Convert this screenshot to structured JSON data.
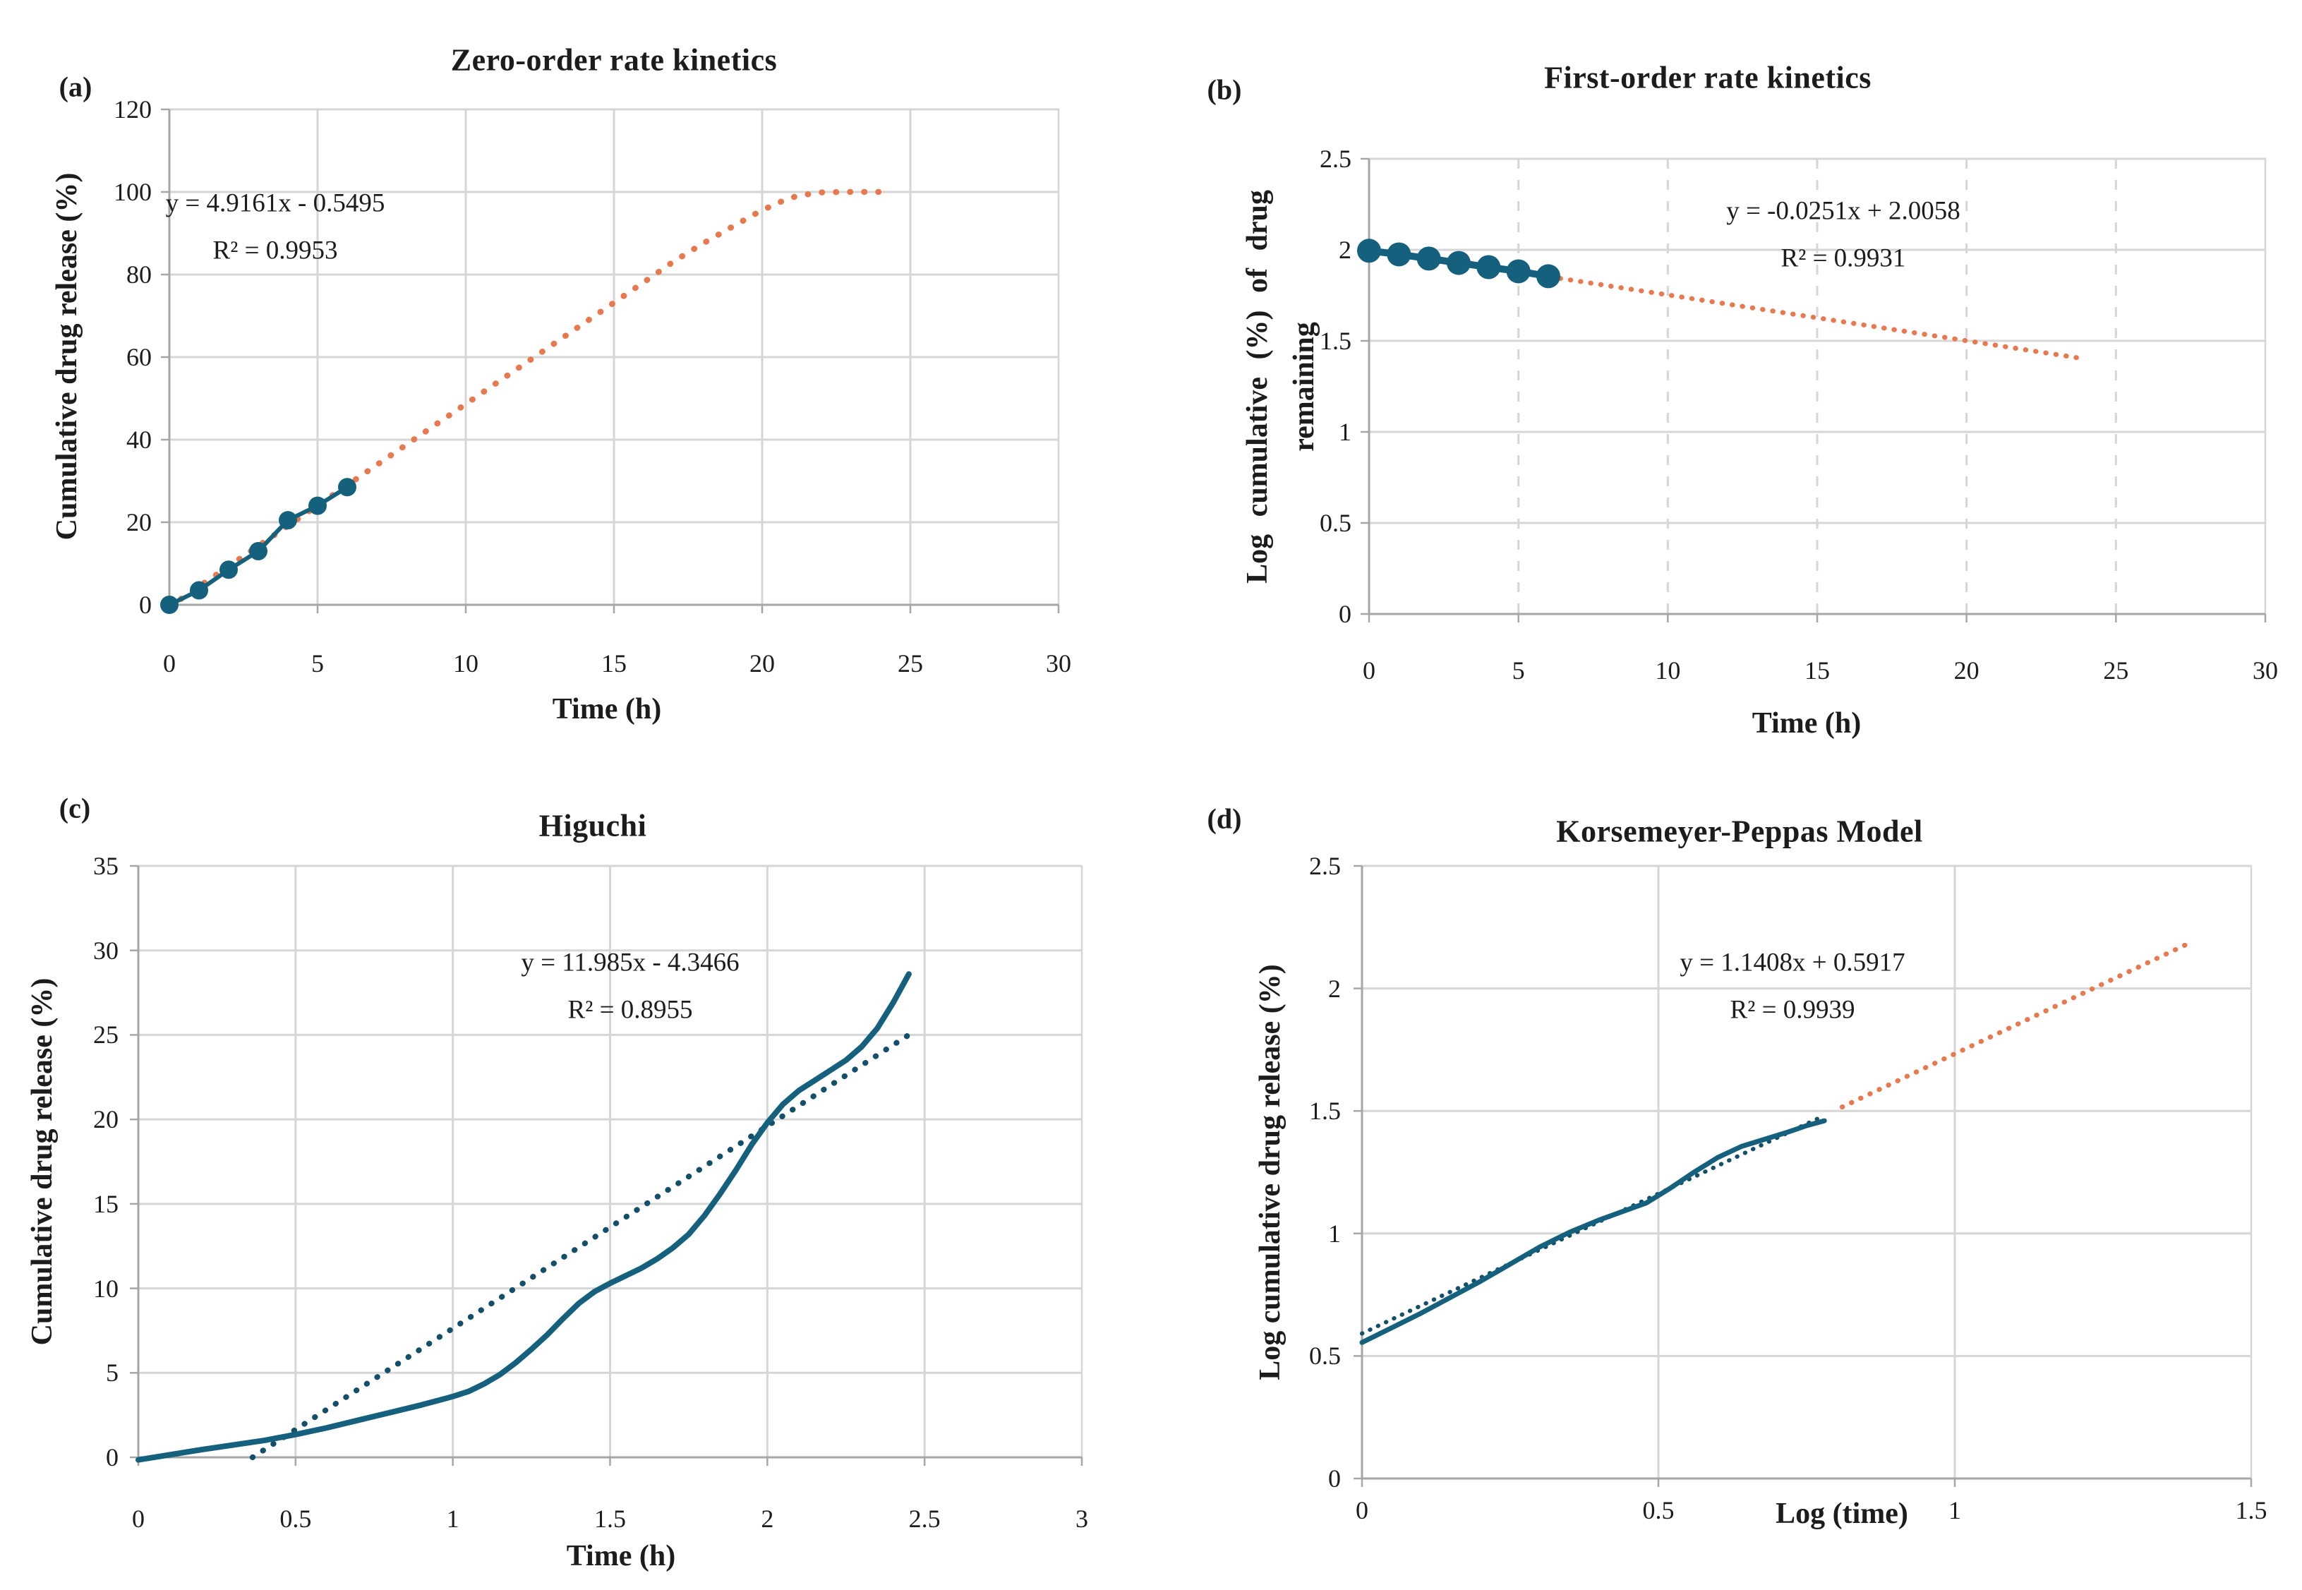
{
  "style": {
    "background": "#FFFFFF",
    "teal": "#14607D",
    "orange": "#E8794F",
    "dark_trend": "#134F68",
    "grid_color": "#D6D6D6",
    "border_color": "#D6D6D6",
    "axis_color": "#A6A6A6",
    "text_color": "#1C1C1C"
  },
  "chart_data": [
    {
      "id": "a",
      "panel_label": "(a)",
      "type": "line",
      "title": "Zero-order rate kinetics",
      "xlabel": "Time (h)",
      "ylabel": "Cumulative drug release (%)",
      "equation": "y = 4.9161x - 0.5495",
      "r_squared": "R² = 0.9953",
      "xlim": [
        0,
        30
      ],
      "ylim": [
        0,
        120
      ],
      "xticks": [
        0,
        5,
        10,
        15,
        20,
        25,
        30
      ],
      "yticks": [
        0,
        20,
        40,
        60,
        80,
        100,
        120
      ],
      "grid": {
        "vertical": "solid",
        "horizontal": "solid"
      },
      "legend": "none",
      "series": [
        {
          "name": "predicted-release-trend",
          "style": "dotted",
          "color": "#E8794F",
          "width": 8.5,
          "gap": 19.5,
          "points": [
            [
              0,
              -0.5
            ],
            [
              16,
              78.1
            ],
            [
              17,
              83.1
            ],
            [
              18,
              87.5
            ],
            [
              19,
              91.6
            ],
            [
              19.8,
              94.8
            ],
            [
              20.5,
              97.3
            ],
            [
              21.2,
              99.1
            ],
            [
              22,
              99.9
            ],
            [
              22.8,
              100
            ],
            [
              24,
              100
            ]
          ]
        },
        {
          "name": "observed-cumulative-release",
          "style": "solid",
          "marker": "circle",
          "marker_size": 13,
          "color": "#14607D",
          "width": 6,
          "points": [
            [
              0,
              0
            ],
            [
              1,
              3.5
            ],
            [
              2,
              8.5
            ],
            [
              3,
              13
            ],
            [
              4,
              20.5
            ],
            [
              5,
              24
            ],
            [
              6,
              28.5
            ]
          ]
        }
      ]
    },
    {
      "id": "b",
      "panel_label": "(b)",
      "type": "line",
      "title": "First-order rate kinetics",
      "xlabel": "Time (h)",
      "ylabel": "Log cumulative (%) of drug remaining",
      "ylabel_lines": [
        "Log cumulative (%) of drug",
        "remaining"
      ],
      "equation": "y = -0.0251x + 2.0058",
      "r_squared": "R² = 0.9931",
      "xlim": [
        0,
        30
      ],
      "ylim": [
        0,
        2.5
      ],
      "xticks": [
        0,
        5,
        10,
        15,
        20,
        25,
        30
      ],
      "yticks": [
        0,
        0.5,
        1,
        1.5,
        2,
        2.5
      ],
      "grid": {
        "vertical": "dashed",
        "horizontal": "solid"
      },
      "legend": "none",
      "series": [
        {
          "name": "first-order-trend-projection",
          "style": "dotted",
          "color": "#E8794F",
          "width": 7,
          "gap": 14,
          "points": [
            [
              6.4,
              1.843
            ],
            [
              24,
              1.4
            ]
          ]
        },
        {
          "name": "observed-log-remaining",
          "style": "solid",
          "marker": "circle",
          "marker_size": 17,
          "color": "#14607D",
          "width": 10,
          "points": [
            [
              0,
              1.995
            ],
            [
              1,
              1.975
            ],
            [
              2,
              1.952
            ],
            [
              3,
              1.928
            ],
            [
              4,
              1.905
            ],
            [
              5,
              1.882
            ],
            [
              6,
              1.855
            ]
          ]
        }
      ]
    },
    {
      "id": "c",
      "panel_label": "(c)",
      "type": "line",
      "title": "Higuchi",
      "xlabel": "Time (h)",
      "ylabel": "Cumulative drug release (%)",
      "equation": "y = 11.985x - 4.3466",
      "r_squared": "R² = 0.8955",
      "xlim": [
        0,
        3
      ],
      "ylim": [
        0,
        35
      ],
      "xticks": [
        0,
        0.5,
        1,
        1.5,
        2,
        2.5,
        3
      ],
      "yticks": [
        0,
        5,
        10,
        15,
        20,
        25,
        30,
        35
      ],
      "grid": {
        "vertical": "solid",
        "horizontal": "solid"
      },
      "legend": "none",
      "series": [
        {
          "name": "higuchi-linear-trend",
          "style": "dotted",
          "color": "#134F68",
          "width": 8,
          "gap": 17,
          "points": [
            [
              0.363,
              0
            ],
            [
              2.45,
              25.0
            ]
          ]
        },
        {
          "name": "observed-release-curve",
          "style": "solid",
          "color": "#14607D",
          "width": 8,
          "points": [
            [
              0,
              -0.15
            ],
            [
              0.2,
              0.45
            ],
            [
              0.4,
              1.0
            ],
            [
              0.5,
              1.35
            ],
            [
              0.6,
              1.75
            ],
            [
              0.7,
              2.2
            ],
            [
              0.8,
              2.65
            ],
            [
              0.9,
              3.1
            ],
            [
              1.0,
              3.6
            ],
            [
              1.05,
              3.9
            ],
            [
              1.1,
              4.35
            ],
            [
              1.15,
              4.9
            ],
            [
              1.2,
              5.6
            ],
            [
              1.25,
              6.4
            ],
            [
              1.3,
              7.25
            ],
            [
              1.35,
              8.2
            ],
            [
              1.4,
              9.1
            ],
            [
              1.45,
              9.8
            ],
            [
              1.5,
              10.3
            ],
            [
              1.55,
              10.75
            ],
            [
              1.6,
              11.2
            ],
            [
              1.65,
              11.75
            ],
            [
              1.7,
              12.4
            ],
            [
              1.75,
              13.2
            ],
            [
              1.8,
              14.3
            ],
            [
              1.85,
              15.6
            ],
            [
              1.9,
              17.0
            ],
            [
              1.95,
              18.5
            ],
            [
              2.0,
              19.8
            ],
            [
              2.05,
              20.9
            ],
            [
              2.1,
              21.7
            ],
            [
              2.15,
              22.3
            ],
            [
              2.2,
              22.9
            ],
            [
              2.25,
              23.5
            ],
            [
              2.3,
              24.3
            ],
            [
              2.35,
              25.4
            ],
            [
              2.4,
              26.9
            ],
            [
              2.45,
              28.6
            ]
          ]
        }
      ]
    },
    {
      "id": "d",
      "panel_label": "(d)",
      "type": "line",
      "title": "Korsemeyer-Peppas Model",
      "xlabel": "Log (time)",
      "ylabel": "Log cumulative drug release (%)",
      "equation": "y = 1.1408x + 0.5917",
      "r_squared": "R² = 0.9939",
      "xlim": [
        0,
        1.5
      ],
      "ylim": [
        0,
        2.5
      ],
      "xticks": [
        0,
        0.5,
        1,
        1.5
      ],
      "yticks": [
        0,
        0.5,
        1,
        1.5,
        2,
        2.5
      ],
      "grid": {
        "vertical": "solid",
        "horizontal": "solid"
      },
      "legend": "none",
      "series": [
        {
          "name": "peppas-linear-trend",
          "style": "dotted",
          "color": "#134F68",
          "width": 6,
          "gap": 12,
          "points": [
            [
              0,
              0.592
            ],
            [
              0.78,
              1.4815
            ]
          ]
        },
        {
          "name": "peppas-trend-projection",
          "style": "dotted",
          "color": "#E8794F",
          "width": 7,
          "gap": 14,
          "points": [
            [
              0.81,
              1.516
            ],
            [
              1.4,
              2.19
            ]
          ]
        },
        {
          "name": "observed-log-release",
          "style": "solid",
          "color": "#14607D",
          "width": 7,
          "points": [
            [
              0,
              0.555
            ],
            [
              0.05,
              0.615
            ],
            [
              0.1,
              0.675
            ],
            [
              0.15,
              0.74
            ],
            [
              0.2,
              0.805
            ],
            [
              0.25,
              0.875
            ],
            [
              0.3,
              0.945
            ],
            [
              0.35,
              1.005
            ],
            [
              0.4,
              1.055
            ],
            [
              0.44,
              1.09
            ],
            [
              0.48,
              1.125
            ],
            [
              0.52,
              1.185
            ],
            [
              0.56,
              1.25
            ],
            [
              0.6,
              1.31
            ],
            [
              0.64,
              1.355
            ],
            [
              0.68,
              1.385
            ],
            [
              0.72,
              1.415
            ],
            [
              0.75,
              1.44
            ],
            [
              0.78,
              1.46
            ]
          ]
        }
      ]
    }
  ]
}
